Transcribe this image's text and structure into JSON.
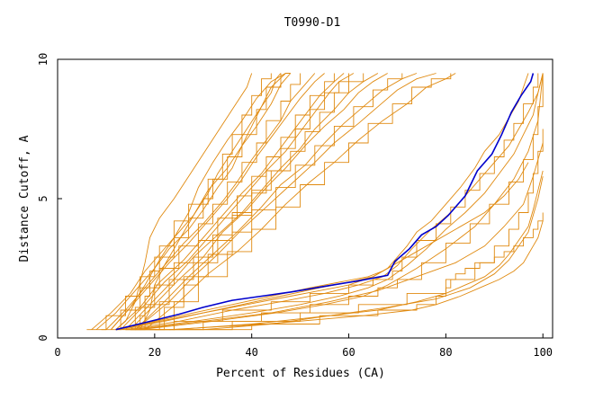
{
  "chart_data": {
    "type": "line",
    "title": "T0990-D1",
    "xlabel": "Percent of Residues (CA)",
    "ylabel": "Distance Cutoff, A",
    "xlim": [
      0,
      102
    ],
    "ylim": [
      0,
      10
    ],
    "xticks": [
      "0",
      "20",
      "40",
      "60",
      "80",
      "100"
    ],
    "yticks": [
      "0",
      "5",
      "10"
    ],
    "grid": false,
    "legend": "none",
    "colors": {
      "background": "#ffffff",
      "series_other": "#e08a10",
      "series_highlight": "#0000cc"
    },
    "highlight_series": {
      "x": [
        12,
        18,
        25,
        30,
        36,
        42,
        48,
        55,
        62,
        68,
        69.5,
        72.5,
        75,
        78,
        80.5,
        84,
        86.5,
        89.5,
        91.5,
        93.5,
        95.5,
        97.5,
        98
      ],
      "y": [
        0.3,
        0.55,
        0.85,
        1.1,
        1.35,
        1.5,
        1.65,
        1.85,
        2.05,
        2.25,
        2.75,
        3.2,
        3.7,
        4.0,
        4.4,
        5.1,
        6.0,
        6.6,
        7.3,
        8.1,
        8.7,
        9.2,
        9.5
      ]
    },
    "series": [
      {
        "x": [
          6,
          10,
          14,
          17,
          20,
          24,
          27,
          30,
          32,
          35,
          38,
          41,
          43,
          46
        ],
        "y": [
          0.3,
          0.8,
          1.5,
          2.2,
          2.9,
          3.6,
          4.3,
          5.0,
          5.7,
          6.5,
          7.3,
          8.2,
          9.0,
          9.5
        ]
      },
      {
        "x": [
          7,
          11,
          15,
          18,
          21,
          25,
          28,
          31,
          33,
          36,
          39,
          42,
          44,
          47
        ],
        "y": [
          0.3,
          0.9,
          1.6,
          2.4,
          3.0,
          3.8,
          4.4,
          5.2,
          5.9,
          6.7,
          7.5,
          8.3,
          9.0,
          9.5
        ]
      },
      {
        "x": [
          8,
          12,
          16,
          20,
          23,
          27,
          30,
          33,
          36,
          38,
          41,
          44,
          46,
          48
        ],
        "y": [
          0.3,
          0.9,
          1.7,
          2.5,
          3.2,
          3.9,
          4.6,
          5.4,
          6.1,
          6.9,
          7.6,
          8.4,
          9.1,
          9.5
        ]
      },
      {
        "x": [
          9,
          13,
          17,
          21,
          25,
          29,
          32,
          35,
          38,
          41,
          43,
          46,
          48,
          50
        ],
        "y": [
          0.3,
          1.0,
          1.8,
          2.5,
          3.3,
          4.1,
          4.8,
          5.6,
          6.3,
          7.0,
          7.8,
          8.5,
          9.1,
          9.5
        ]
      },
      {
        "x": [
          10,
          14,
          18,
          22,
          26,
          30,
          34,
          37,
          40,
          43,
          46,
          48,
          51,
          53
        ],
        "y": [
          0.3,
          1.0,
          1.8,
          2.6,
          3.4,
          4.1,
          4.9,
          5.6,
          6.4,
          7.1,
          7.8,
          8.5,
          9.1,
          9.5
        ]
      },
      {
        "x": [
          11,
          15,
          19,
          23,
          27,
          31,
          35,
          38,
          41,
          44,
          47,
          50,
          53,
          55
        ],
        "y": [
          0.3,
          1.1,
          1.9,
          2.7,
          3.4,
          4.2,
          5.0,
          5.7,
          6.5,
          7.2,
          7.9,
          8.6,
          9.2,
          9.5
        ]
      },
      {
        "x": [
          12,
          16,
          20,
          24,
          29,
          33,
          37,
          40,
          43,
          46,
          49,
          52,
          55,
          57
        ],
        "y": [
          0.3,
          1.1,
          1.9,
          2.7,
          3.5,
          4.3,
          5.1,
          5.8,
          6.5,
          7.2,
          8.0,
          8.7,
          9.2,
          9.5
        ]
      },
      {
        "x": [
          12,
          17,
          21,
          26,
          30,
          34,
          38,
          42,
          45,
          48,
          51,
          54,
          57,
          59
        ],
        "y": [
          0.3,
          1.1,
          2.0,
          2.8,
          3.6,
          4.4,
          5.2,
          5.9,
          6.6,
          7.3,
          8.0,
          8.7,
          9.2,
          9.5
        ]
      },
      {
        "x": [
          13,
          18,
          22,
          27,
          31,
          35,
          39,
          43,
          47,
          50,
          53,
          56,
          58,
          61
        ],
        "y": [
          0.3,
          1.2,
          2.0,
          2.8,
          3.6,
          4.4,
          5.2,
          6.0,
          6.7,
          7.4,
          8.1,
          8.8,
          9.2,
          9.5
        ]
      },
      {
        "x": [
          14,
          18,
          23,
          28,
          32,
          36,
          40,
          44,
          48,
          51,
          54,
          57,
          60,
          63
        ],
        "y": [
          0.3,
          1.2,
          2.1,
          2.9,
          3.7,
          4.5,
          5.3,
          6.0,
          6.7,
          7.4,
          8.1,
          8.8,
          9.2,
          9.5
        ]
      },
      {
        "x": [
          14,
          19,
          24,
          28,
          33,
          38,
          42,
          46,
          50,
          53,
          57,
          60,
          63,
          66
        ],
        "y": [
          0.3,
          1.2,
          2.1,
          2.9,
          3.7,
          4.5,
          5.3,
          6.1,
          6.8,
          7.5,
          8.2,
          8.8,
          9.2,
          9.5
        ]
      },
      {
        "x": [
          15,
          20,
          25,
          30,
          34,
          39,
          43,
          47,
          51,
          55,
          59,
          62,
          65,
          68
        ],
        "y": [
          0.3,
          1.2,
          2.1,
          2.9,
          3.8,
          4.6,
          5.4,
          6.1,
          6.9,
          7.6,
          8.2,
          8.8,
          9.2,
          9.5
        ]
      },
      {
        "x": [
          15,
          21,
          26,
          31,
          36,
          40,
          45,
          49,
          53,
          57,
          61,
          65,
          68,
          71
        ],
        "y": [
          0.3,
          1.3,
          2.2,
          3.0,
          3.8,
          4.6,
          5.4,
          6.2,
          6.9,
          7.6,
          8.3,
          8.9,
          9.3,
          9.5
        ]
      },
      {
        "x": [
          16,
          22,
          27,
          32,
          37,
          42,
          46,
          51,
          55,
          59,
          63,
          67,
          71,
          74
        ],
        "y": [
          0.3,
          1.3,
          2.2,
          3.0,
          3.8,
          4.7,
          5.5,
          6.2,
          7.0,
          7.7,
          8.3,
          8.9,
          9.3,
          9.5
        ]
      },
      {
        "x": [
          16,
          23,
          28,
          33,
          38,
          43,
          48,
          53,
          57,
          62,
          66,
          70,
          74,
          78
        ],
        "y": [
          0.3,
          1.3,
          2.2,
          3.0,
          3.9,
          4.7,
          5.5,
          6.3,
          7.0,
          7.7,
          8.3,
          8.9,
          9.3,
          9.5
        ]
      },
      {
        "x": [
          17,
          24,
          29,
          35,
          40,
          45,
          50,
          55,
          60,
          64,
          69,
          73,
          77,
          81
        ],
        "y": [
          0.3,
          1.3,
          2.2,
          3.1,
          3.9,
          4.7,
          5.5,
          6.3,
          7.0,
          7.7,
          8.4,
          9.0,
          9.3,
          9.5
        ]
      },
      {
        "x": [
          18,
          25,
          31,
          37,
          42,
          47,
          52,
          57,
          62,
          67,
          72,
          76,
          80,
          82
        ],
        "y": [
          0.3,
          1.3,
          2.3,
          3.1,
          3.9,
          4.8,
          5.6,
          6.3,
          7.1,
          7.8,
          8.4,
          9.0,
          9.3,
          9.5
        ]
      },
      {
        "x": [
          11,
          15,
          18,
          21,
          24,
          27,
          29,
          32,
          35,
          38,
          41,
          44,
          47,
          48
        ],
        "y": [
          0.3,
          1.1,
          1.9,
          2.8,
          3.6,
          4.5,
          5.4,
          6.3,
          7.1,
          7.8,
          8.6,
          9.2,
          9.5,
          9.5
        ]
      },
      {
        "x": [
          15,
          17,
          18,
          19,
          21,
          24,
          27,
          31,
          34,
          36,
          38,
          40,
          42,
          44
        ],
        "y": [
          0.3,
          0.8,
          1.5,
          2.4,
          3.3,
          4.2,
          4.8,
          5.7,
          6.6,
          7.3,
          8.0,
          8.7,
          9.3,
          9.5
        ]
      },
      {
        "x": [
          12,
          14,
          16,
          17,
          18,
          19,
          21,
          24,
          27,
          30,
          33,
          36,
          39,
          40
        ],
        "y": [
          0.3,
          0.6,
          1.3,
          2.0,
          2.7,
          3.6,
          4.3,
          5.0,
          5.8,
          6.6,
          7.4,
          8.2,
          9.0,
          9.5
        ]
      },
      {
        "x": [
          17,
          19,
          20,
          22,
          25,
          28,
          31,
          35,
          38,
          40,
          42,
          44,
          45,
          46
        ],
        "y": [
          0.3,
          1.0,
          1.9,
          2.6,
          3.5,
          4.4,
          5.3,
          6.1,
          6.9,
          7.6,
          8.3,
          8.8,
          9.3,
          9.5
        ]
      },
      {
        "x": [
          19,
          22,
          26,
          29,
          33,
          36,
          40,
          43,
          46,
          49,
          52,
          55,
          58,
          60
        ],
        "y": [
          0.3,
          1.1,
          1.9,
          2.7,
          3.5,
          4.4,
          5.2,
          6.0,
          6.8,
          7.5,
          8.2,
          8.8,
          9.2,
          9.5
        ]
      },
      {
        "x": [
          12,
          20,
          28,
          36,
          44,
          52,
          58,
          64,
          67,
          69,
          70
        ],
        "y": [
          0.3,
          0.6,
          0.9,
          1.2,
          1.5,
          1.8,
          2.0,
          2.2,
          2.4,
          2.6,
          2.8
        ]
      },
      {
        "x": [
          13,
          22,
          30,
          38,
          46,
          54,
          60,
          65,
          68,
          70,
          72,
          74,
          77,
          80,
          83,
          86,
          88,
          91,
          93,
          95,
          96,
          97
        ],
        "y": [
          0.3,
          0.6,
          0.9,
          1.2,
          1.5,
          1.8,
          2.0,
          2.2,
          2.5,
          2.9,
          3.3,
          3.8,
          4.2,
          4.8,
          5.4,
          6.1,
          6.7,
          7.3,
          7.9,
          8.5,
          9.0,
          9.5
        ]
      },
      {
        "x": [
          14,
          24,
          34,
          44,
          52,
          60,
          65,
          69,
          71,
          74,
          78,
          81,
          84,
          87,
          90,
          92,
          94,
          96,
          98,
          99
        ],
        "y": [
          0.3,
          0.6,
          1.0,
          1.3,
          1.6,
          1.9,
          2.1,
          2.4,
          2.9,
          3.5,
          4.1,
          4.7,
          5.3,
          5.9,
          6.5,
          7.1,
          7.7,
          8.4,
          9.0,
          9.5
        ]
      },
      {
        "x": [
          14,
          25,
          36,
          46,
          55,
          62,
          67,
          70,
          73,
          77,
          81,
          84,
          87,
          90,
          93,
          95,
          97,
          99,
          100
        ],
        "y": [
          0.3,
          0.6,
          1.0,
          1.3,
          1.6,
          1.9,
          2.2,
          2.6,
          3.2,
          3.9,
          4.5,
          5.1,
          5.7,
          6.3,
          6.9,
          7.5,
          8.1,
          8.8,
          9.5
        ]
      },
      {
        "x": [
          15,
          28,
          40,
          50,
          58,
          64,
          68,
          72,
          76,
          80,
          84,
          88,
          91,
          94,
          96,
          98,
          99,
          100
        ],
        "y": [
          0.3,
          0.6,
          0.9,
          1.2,
          1.5,
          1.8,
          2.1,
          2.6,
          3.2,
          3.9,
          4.5,
          5.2,
          5.9,
          6.6,
          7.3,
          8.0,
          8.8,
          9.5
        ]
      },
      {
        "x": [
          16,
          30,
          42,
          52,
          60,
          66,
          70,
          75,
          80,
          85,
          89,
          93,
          96,
          98,
          99,
          100
        ],
        "y": [
          0.3,
          0.6,
          0.9,
          1.2,
          1.5,
          1.8,
          2.1,
          2.7,
          3.4,
          4.1,
          4.8,
          5.6,
          6.4,
          7.3,
          8.3,
          9.5
        ]
      },
      {
        "x": [
          17,
          32,
          45,
          55,
          63,
          68,
          74,
          80,
          86,
          90,
          94,
          97,
          99,
          100
        ],
        "y": [
          0.3,
          0.6,
          0.9,
          1.2,
          1.5,
          1.9,
          2.5,
          3.2,
          4.0,
          4.8,
          5.7,
          6.7,
          7.8,
          9.5
        ]
      },
      {
        "x": [
          16,
          30,
          44,
          56,
          66,
          74,
          82,
          88,
          92,
          96,
          98,
          100
        ],
        "y": [
          0.3,
          0.6,
          0.9,
          1.3,
          1.7,
          2.2,
          2.7,
          3.3,
          4.0,
          4.8,
          5.8,
          7.0
        ]
      },
      {
        "x": [
          20,
          36,
          50,
          62,
          72,
          80,
          86,
          90,
          93,
          95,
          97,
          98,
          99,
          100
        ],
        "y": [
          0.3,
          0.6,
          0.9,
          1.2,
          1.6,
          2.1,
          2.7,
          3.3,
          3.9,
          4.5,
          5.2,
          5.9,
          6.7,
          7.5
        ]
      },
      {
        "x": [
          24,
          40,
          56,
          68,
          78,
          85,
          90,
          93,
          95,
          97,
          98,
          99,
          100
        ],
        "y": [
          0.3,
          0.5,
          0.8,
          1.1,
          1.4,
          1.8,
          2.3,
          2.8,
          3.3,
          3.8,
          4.4,
          5.0,
          5.8
        ]
      },
      {
        "x": [
          30,
          44,
          56,
          66,
          74,
          80,
          84,
          88,
          91,
          93,
          95,
          97,
          98,
          99,
          100
        ],
        "y": [
          0.3,
          0.5,
          0.8,
          1.0,
          1.3,
          1.6,
          1.9,
          2.2,
          2.6,
          3.0,
          3.5,
          4.0,
          4.6,
          5.3,
          6.0
        ]
      },
      {
        "x": [
          24,
          40,
          54,
          66,
          74,
          78,
          80,
          81,
          82,
          84,
          87,
          90,
          92,
          94,
          96,
          98,
          99,
          100
        ],
        "y": [
          0.3,
          0.5,
          0.8,
          1.0,
          1.2,
          1.5,
          1.8,
          2.1,
          2.3,
          2.5,
          2.7,
          2.9,
          3.1,
          3.3,
          3.6,
          3.9,
          4.2,
          4.5
        ]
      },
      {
        "x": [
          23,
          43,
          63,
          73,
          78,
          83,
          87,
          91,
          94,
          96,
          97,
          98,
          99,
          99.5,
          100
        ],
        "y": [
          0.3,
          0.5,
          0.8,
          1.0,
          1.2,
          1.5,
          1.8,
          2.1,
          2.4,
          2.7,
          3.0,
          3.3,
          3.6,
          3.9,
          4.2
        ]
      },
      {
        "x": [
          12,
          18,
          24,
          30,
          36,
          42,
          48,
          54,
          60,
          65,
          70,
          76,
          82,
          88,
          92,
          95,
          97
        ],
        "y": [
          0.3,
          0.5,
          0.7,
          0.9,
          1.1,
          1.3,
          1.5,
          1.7,
          1.9,
          2.2,
          2.7,
          3.3,
          3.9,
          4.5,
          5.1,
          5.7,
          6.3
        ]
      }
    ]
  }
}
